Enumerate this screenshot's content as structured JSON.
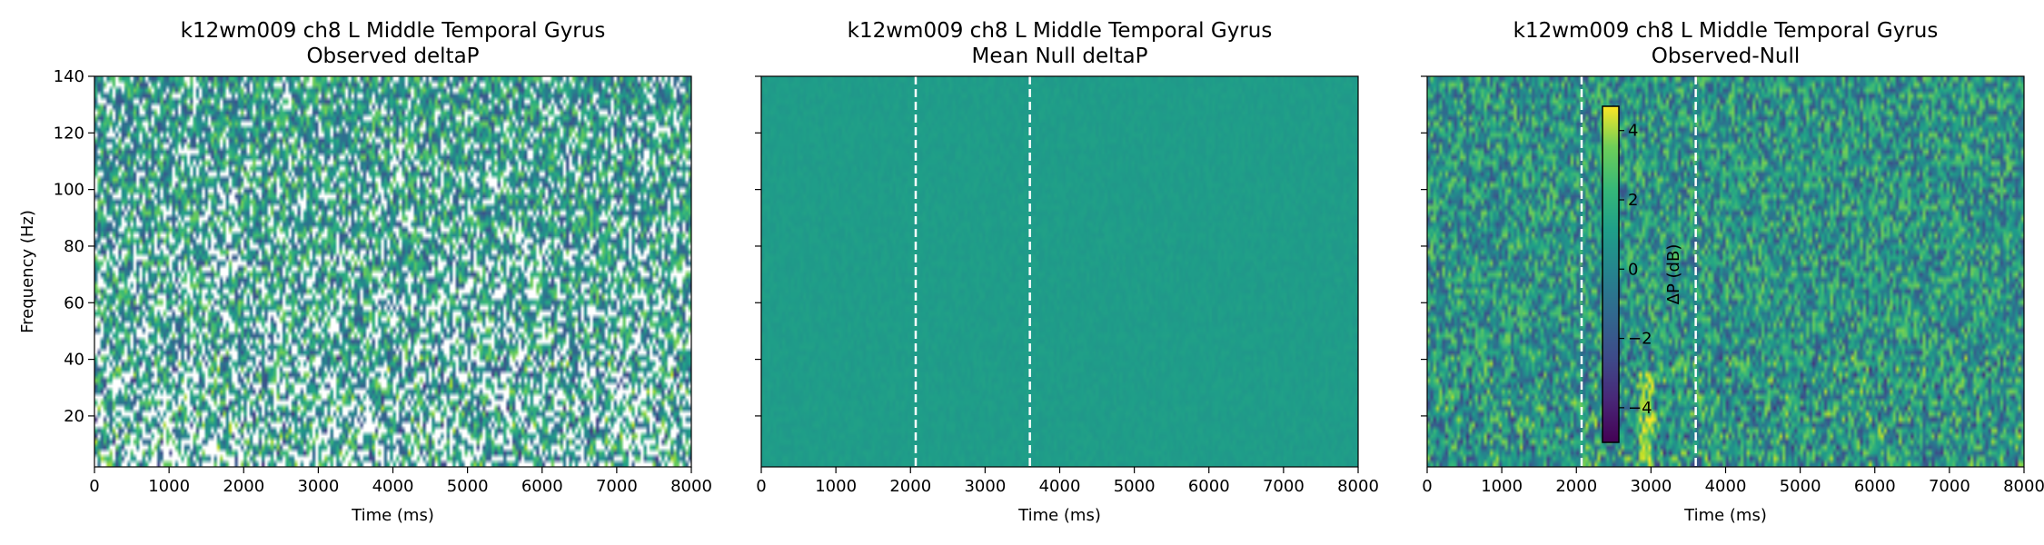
{
  "chart_data": [
    {
      "type": "heatmap",
      "title": "k12wm009 ch8 L Middle Temporal Gyrus",
      "subtitle": "Observed deltaP",
      "xlabel": "Time (ms)",
      "ylabel": "Frequency (Hz)",
      "xlim": [
        0,
        8000
      ],
      "ylim": [
        2,
        140
      ],
      "xticks": [
        0,
        1000,
        2000,
        3000,
        4000,
        5000,
        6000,
        7000,
        8000
      ],
      "yticks": [
        20,
        40,
        60,
        80,
        100,
        120,
        140
      ],
      "colormap": "viridis",
      "masked_color": "#ffffff",
      "event_lines_ms": [],
      "grid": false,
      "notes_masked": "non-significant pixels shown as white gaps"
    },
    {
      "type": "heatmap",
      "title": "k12wm009 ch8 L Middle Temporal Gyrus",
      "subtitle": "Mean Null deltaP",
      "xlabel": "Time (ms)",
      "ylabel": "",
      "xlim": [
        0,
        8000
      ],
      "ylim": [
        2,
        140
      ],
      "xticks": [
        0,
        1000,
        2000,
        3000,
        4000,
        5000,
        6000,
        7000,
        8000
      ],
      "yticks": [
        20,
        40,
        60,
        80,
        100,
        120,
        140
      ],
      "colormap": "viridis",
      "event_lines_ms": [
        2070,
        3600
      ],
      "event_line_style": "dashed-white",
      "grid": false
    },
    {
      "type": "heatmap",
      "title": "k12wm009 ch8 L Middle Temporal Gyrus",
      "subtitle": "Observed-Null",
      "xlabel": "Time (ms)",
      "ylabel": "",
      "xlim": [
        0,
        8000
      ],
      "ylim": [
        2,
        140
      ],
      "xticks": [
        0,
        1000,
        2000,
        3000,
        4000,
        5000,
        6000,
        7000,
        8000
      ],
      "yticks": [
        20,
        40,
        60,
        80,
        100,
        120,
        140
      ],
      "colormap": "viridis",
      "event_lines_ms": [
        2070,
        3600
      ],
      "event_line_style": "dashed-white",
      "grid": false,
      "colorbar": {
        "label": "ΔP (dB)",
        "range": [
          -5,
          4.7
        ],
        "ticks": [
          4,
          2,
          0,
          -2,
          -4
        ],
        "tick_labels": [
          "4",
          "2",
          "0",
          "−2",
          "−4"
        ],
        "placement": "inside-left"
      }
    }
  ]
}
